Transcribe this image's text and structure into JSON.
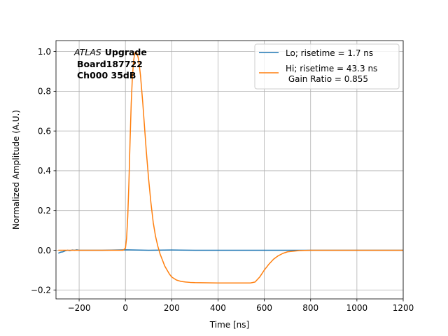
{
  "chart_data": {
    "type": "line",
    "title": "",
    "xlabel": "Time [ns]",
    "ylabel": "Normalized Amplitude (A.U.)",
    "xlim": [
      -300,
      1200
    ],
    "ylim": [
      -0.245,
      1.055
    ],
    "x_ticks": [
      -200,
      0,
      200,
      400,
      600,
      800,
      1000,
      1200
    ],
    "x_tick_labels": [
      "−200",
      "0",
      "200",
      "400",
      "600",
      "800",
      "1000",
      "1200"
    ],
    "y_ticks": [
      -0.2,
      0.0,
      0.2,
      0.4,
      0.6,
      0.8,
      1.0
    ],
    "y_tick_labels": [
      "−0.2",
      "0.0",
      "0.2",
      "0.4",
      "0.6",
      "0.8",
      "1.0"
    ],
    "grid": true,
    "legend_position": "top-right",
    "annotation": {
      "italic_part": "ATLAS",
      "bold_part": "Upgrade",
      "line2": "Board187722",
      "line3": "Ch000 35dB"
    },
    "series": [
      {
        "name": "Lo; risetime = 1.7 ns",
        "color": "#1f77b4",
        "x": [
          -290,
          -280,
          -270,
          -260,
          -250,
          -240,
          -230,
          -220,
          -210,
          -200,
          -100,
          0,
          100,
          200,
          300,
          400,
          500,
          600,
          700,
          800,
          900,
          1000,
          1100,
          1200
        ],
        "y": [
          -0.015,
          -0.01,
          -0.008,
          -0.003,
          0.0,
          -0.002,
          0.001,
          0.0,
          0.002,
          0.0,
          0.0,
          0.002,
          0.0,
          0.001,
          0.0,
          0.0,
          0.0,
          0.0,
          0.0,
          0.0,
          0.0,
          0.0,
          0.0,
          0.0
        ]
      },
      {
        "name": "Hi; risetime = 43.3 ns\n Gain Ratio = 0.855",
        "color": "#ff7f0e",
        "x": [
          -290,
          -200,
          -100,
          -10,
          0,
          5,
          10,
          15,
          20,
          25,
          30,
          35,
          40,
          45,
          50,
          55,
          60,
          65,
          70,
          75,
          80,
          85,
          90,
          100,
          110,
          120,
          130,
          140,
          150,
          160,
          170,
          180,
          190,
          200,
          220,
          240,
          260,
          280,
          300,
          350,
          400,
          450,
          500,
          540,
          560,
          580,
          600,
          620,
          640,
          660,
          680,
          700,
          750,
          800,
          900,
          1000,
          1100,
          1200
        ],
        "y": [
          0.0,
          0.0,
          0.0,
          0.0,
          0.01,
          0.06,
          0.17,
          0.34,
          0.55,
          0.74,
          0.87,
          0.95,
          0.99,
          1.0,
          0.99,
          0.97,
          0.93,
          0.88,
          0.81,
          0.74,
          0.66,
          0.58,
          0.5,
          0.36,
          0.24,
          0.14,
          0.07,
          0.02,
          -0.02,
          -0.05,
          -0.08,
          -0.1,
          -0.12,
          -0.135,
          -0.15,
          -0.157,
          -0.16,
          -0.162,
          -0.163,
          -0.164,
          -0.165,
          -0.165,
          -0.165,
          -0.165,
          -0.16,
          -0.135,
          -0.1,
          -0.07,
          -0.045,
          -0.028,
          -0.016,
          -0.008,
          -0.002,
          0.0,
          0.0,
          0.0,
          0.0,
          0.0
        ]
      }
    ]
  }
}
